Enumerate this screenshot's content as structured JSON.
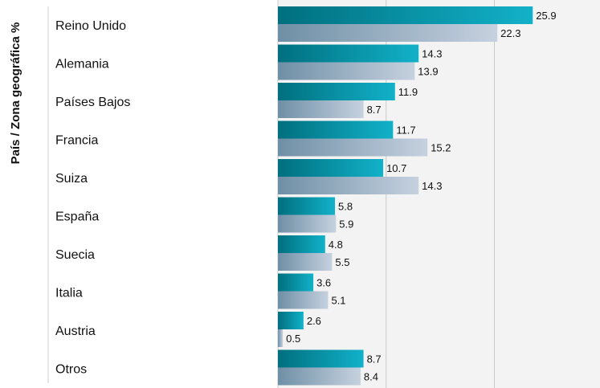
{
  "chart_data": {
    "type": "bar",
    "orientation": "horizontal",
    "ylabel": "País / Zona geográfica %",
    "categories": [
      "Reino Unido",
      "Alemania",
      "Países Bajos",
      "Francia",
      "Suiza",
      "España",
      "Suecia",
      "Italia",
      "Austria",
      "Otros"
    ],
    "series": [
      {
        "values": [
          25.9,
          14.3,
          11.9,
          11.7,
          10.7,
          5.8,
          4.8,
          3.6,
          2.6,
          8.7
        ]
      },
      {
        "values": [
          22.3,
          13.9,
          8.7,
          15.2,
          14.3,
          5.9,
          5.5,
          5.1,
          0.5,
          8.4
        ]
      }
    ],
    "value_labels": [
      [
        "25.9",
        "14.3",
        "11.9",
        "11.7",
        "10.7",
        "5.8",
        "4.8",
        "3.6",
        "2.6",
        "8.7"
      ],
      [
        "22.3",
        "13.9",
        "8.7",
        "15.2",
        "14.3",
        "5.9",
        "5.5",
        "5.1",
        "0.5",
        "8.4"
      ]
    ],
    "xlim": [
      0,
      33
    ],
    "grid": true,
    "colors": {
      "series1_dark": "#006f7e",
      "series1_light": "#12b1c9",
      "series2_dark": "#6f8fa6",
      "series2_light": "#c6d1df",
      "plot_background": "#f3f3f3",
      "gridline": "#c9c9c9"
    }
  }
}
